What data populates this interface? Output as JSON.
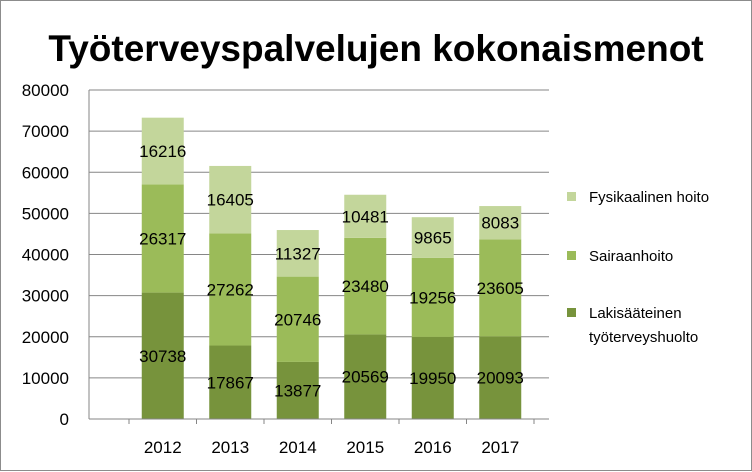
{
  "chart_data": {
    "type": "bar",
    "stacked": true,
    "title": "Työterveyspalvelujen kokonaismenot",
    "categories": [
      "2012",
      "2013",
      "2014",
      "2015",
      "2016",
      "2017"
    ],
    "ylim": [
      0,
      80000
    ],
    "yticks": [
      "0",
      "10000",
      "20000",
      "30000",
      "40000",
      "50000",
      "60000",
      "70000",
      "80000"
    ],
    "grid": true,
    "legend_position": "right",
    "series": [
      {
        "name": "Lakisääteinen työterveyshuolto",
        "legend_lines": [
          "Lakisääteinen",
          "työterveyshuolto"
        ],
        "color": "#77933c",
        "values": [
          30738,
          17867,
          13877,
          20569,
          19950,
          20093
        ]
      },
      {
        "name": "Sairaanhoito",
        "legend_lines": [
          "Sairaanhoito"
        ],
        "color": "#9bbb59",
        "values": [
          26317,
          27262,
          20746,
          23480,
          19256,
          23605
        ]
      },
      {
        "name": "Fysikaalinen hoito",
        "legend_lines": [
          "Fysikaalinen hoito"
        ],
        "color": "#c3d69b",
        "values": [
          16216,
          16405,
          11327,
          10481,
          9865,
          8083
        ]
      }
    ]
  }
}
